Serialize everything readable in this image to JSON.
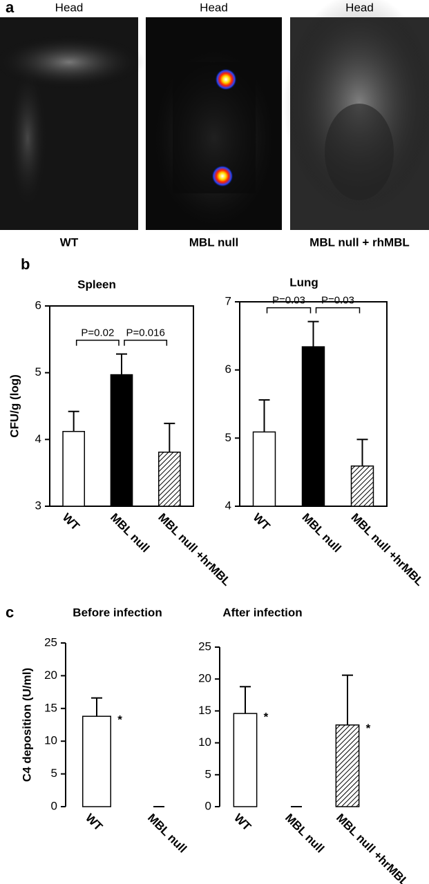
{
  "panel_a": {
    "label": "a",
    "images": [
      {
        "top": "Head",
        "caption": "WT"
      },
      {
        "top": "Head",
        "caption": "MBL null"
      },
      {
        "top": "Head",
        "caption": "MBL null + rhMBL"
      }
    ]
  },
  "panel_labels": [
    "b",
    "c"
  ],
  "chart_data": [
    {
      "type": "bar",
      "title": "Spleen",
      "ylabel": "CFU/g (log)",
      "categories": [
        "WT",
        "MBL null",
        "MBL null +hrMBL"
      ],
      "values": [
        4.12,
        4.97,
        3.81
      ],
      "errors": [
        0.3,
        0.31,
        0.43
      ],
      "bar_styles": [
        "open",
        "solid",
        "hatched"
      ],
      "annotations": [
        "P=0.02",
        "P=0.016"
      ],
      "ylim": [
        3,
        6
      ],
      "yticks": [
        3,
        4,
        5,
        6
      ],
      "frame": true
    },
    {
      "type": "bar",
      "title": "Lung",
      "categories": [
        "WT",
        "MBL null",
        "MBL null +hrMBL"
      ],
      "values": [
        5.09,
        6.34,
        4.59
      ],
      "errors": [
        0.47,
        0.37,
        0.39
      ],
      "bar_styles": [
        "open",
        "solid",
        "hatched"
      ],
      "annotations": [
        "P=0.03",
        "P=0.03"
      ],
      "ylim": [
        4,
        7
      ],
      "yticks": [
        4,
        5,
        6,
        7
      ],
      "frame": true
    },
    {
      "type": "bar",
      "title": "Before infection",
      "ylabel": "C4 deposition (U/ml)",
      "categories": [
        "WT",
        "MBL null"
      ],
      "values": [
        13.8,
        0
      ],
      "errors": [
        2.8,
        0
      ],
      "bar_styles": [
        "open",
        "solid"
      ],
      "notes": [
        "*",
        null
      ],
      "ylim": [
        0,
        25
      ],
      "yticks": [
        0,
        5,
        10,
        15,
        20,
        25
      ],
      "frame": false
    },
    {
      "type": "bar",
      "title": "After infection",
      "categories": [
        "WT",
        "MBL null",
        "MBL null +hrMBL"
      ],
      "values": [
        14.6,
        0,
        12.8
      ],
      "errors": [
        4.2,
        0,
        7.8
      ],
      "bar_styles": [
        "open",
        "solid",
        "hatched"
      ],
      "notes": [
        "*",
        null,
        "*"
      ],
      "ylim": [
        0,
        25
      ],
      "yticks": [
        0,
        5,
        10,
        15,
        20,
        25
      ],
      "frame": false
    }
  ]
}
